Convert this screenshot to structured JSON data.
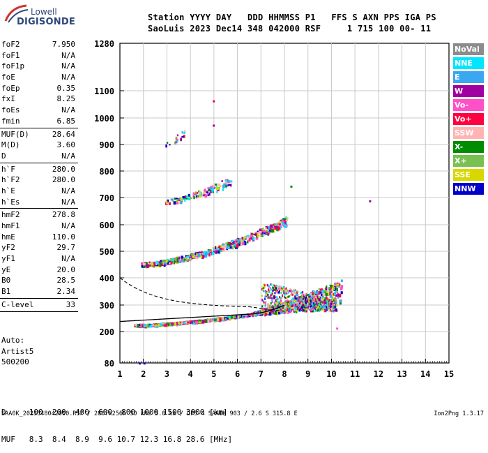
{
  "logo": {
    "line1": "Lowell",
    "line2": "DIGISONDE"
  },
  "header": {
    "line1": "Station YYYY DAY   DDD HHMMSS P1   FFS S AXN PPS IGA PS",
    "line2": "SaoLuis 2023 Dec14 348 042000 RSF     1 715 100 00- 11"
  },
  "params": [
    {
      "k": "foF2",
      "v": "7.950"
    },
    {
      "k": "foF1",
      "v": "N/A"
    },
    {
      "k": "foF1p",
      "v": "N/A"
    },
    {
      "k": "foE",
      "v": "N/A"
    },
    {
      "k": "foEp",
      "v": "0.35"
    },
    {
      "k": "fxI",
      "v": "8.25"
    },
    {
      "k": "foEs",
      "v": "N/A"
    },
    {
      "k": "fmin",
      "v": "6.85"
    },
    {
      "div": true
    },
    {
      "k": "MUF(D)",
      "v": "28.64"
    },
    {
      "k": "M(D)",
      "v": "3.60"
    },
    {
      "k": "D",
      "v": "N/A"
    },
    {
      "div": true
    },
    {
      "k": "h`F",
      "v": "280.0"
    },
    {
      "k": "h`F2",
      "v": "280.0"
    },
    {
      "k": "h`E",
      "v": "N/A"
    },
    {
      "k": "h`Es",
      "v": "N/A"
    },
    {
      "div": true
    },
    {
      "k": "hmF2",
      "v": "278.8"
    },
    {
      "k": "hmF1",
      "v": "N/A"
    },
    {
      "k": "hmE",
      "v": "110.0"
    },
    {
      "k": "yF2",
      "v": "29.7"
    },
    {
      "k": "yF1",
      "v": "N/A"
    },
    {
      "k": "yE",
      "v": "20.0"
    },
    {
      "k": "B0",
      "v": "28.5"
    },
    {
      "k": "B1",
      "v": "2.34"
    },
    {
      "div": true
    },
    {
      "k": "C-level",
      "v": "33"
    },
    {
      "div": true
    }
  ],
  "auto": {
    "line1": "Auto:",
    "line2": "Artist5",
    "line3": "500200"
  },
  "legend": [
    {
      "label": "NoVal",
      "color": "#8c8c8c",
      "text": "#ffffff"
    },
    {
      "label": "NNE",
      "color": "#00e6ff",
      "text": "#ffffff"
    },
    {
      "label": "E",
      "color": "#3aa8f0",
      "text": "#ffffff"
    },
    {
      "label": "W",
      "color": "#a000a0",
      "text": "#ffffff"
    },
    {
      "label": "Vo-",
      "color": "#ff50c8",
      "text": "#ffffff"
    },
    {
      "label": "Vo+",
      "color": "#ff0040",
      "text": "#ffffff"
    },
    {
      "label": "SSW",
      "color": "#ffb4b4",
      "text": "#ffffff"
    },
    {
      "label": "X-",
      "color": "#008c00",
      "text": "#ffffff"
    },
    {
      "label": "X+",
      "color": "#78c050",
      "text": "#ffffff"
    },
    {
      "label": "SSE",
      "color": "#d8d800",
      "text": "#ffffff"
    },
    {
      "label": "NNW",
      "color": "#0000c8",
      "text": "#ffffff"
    }
  ],
  "axes": {
    "x_ticks": [
      "1",
      "2",
      "3",
      "4",
      "5",
      "6",
      "7",
      "8",
      "9",
      "10",
      "11",
      "12",
      "13",
      "14",
      "15"
    ],
    "xlim": [
      1,
      15
    ],
    "y_ticks": [
      {
        "v": 80,
        "label": "80"
      },
      {
        "v": 200,
        "label": "200"
      },
      {
        "v": 300,
        "label": "300"
      },
      {
        "v": 400,
        "label": "400"
      },
      {
        "v": 500,
        "label": "500"
      },
      {
        "v": 600,
        "label": "600"
      },
      {
        "v": 700,
        "label": "700"
      },
      {
        "v": 800,
        "label": "800"
      },
      {
        "v": 900,
        "label": "900"
      },
      {
        "v": 1000,
        "label": "1000"
      },
      {
        "v": 1100,
        "label": "1100"
      },
      {
        "v": 1280,
        "label": "1280"
      }
    ],
    "ylim": [
      80,
      1280
    ]
  },
  "muf_table": {
    "line1": "D     100  200  400  600  800 1000 1500 3000 [km]",
    "line2": "MUF   8.3  8.4  8.9  9.6 10.7 12.3 16.8 28.6 [MHz]"
  },
  "footer": {
    "left": "SAA0K_2023348042000.RSF / 280fx256h 50 kHz 5.0 km / DPS-4 SAA0K 903 / 2.6 S 315.8 E",
    "right": "Ion2Png 1.3.17"
  },
  "traces": [
    {
      "name": "F-trace-low",
      "f0": 1.6,
      "f1": 10.4,
      "h0": 225,
      "h1": 330
    },
    {
      "name": "F-multi-2",
      "f0": 1.9,
      "f1": 8.1,
      "h0": 450,
      "h1": 610
    },
    {
      "name": "F-multi-3",
      "f0": 2.9,
      "f1": 5.7,
      "h0": 685,
      "h1": 760
    },
    {
      "name": "F-multi-4",
      "f0": 2.9,
      "f1": 3.8,
      "h0": 900,
      "h1": 950
    }
  ]
}
